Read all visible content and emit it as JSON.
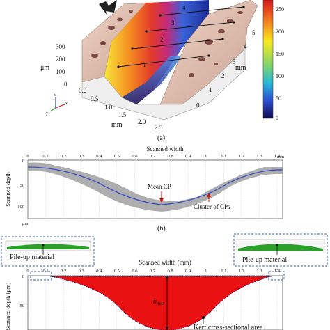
{
  "panel_a": {
    "label": "(a)",
    "z_axis_ticks": [
      "300",
      "200",
      "100",
      "0"
    ],
    "z_unit": "μm",
    "x_axis_ticks": [
      "0.0",
      "0.5",
      "1.0",
      "1.5",
      "2.0",
      "2.5"
    ],
    "x_unit": "mm",
    "y_axis_ticks": [
      "0",
      "1",
      "2",
      "3",
      "4",
      "5"
    ],
    "y_unit": "mm",
    "colorbar_ticks": [
      "250",
      "200",
      "150",
      "100",
      "50",
      "0"
    ],
    "scan_lines": [
      "1",
      "2",
      "3",
      "4"
    ],
    "triad": {
      "x": "x",
      "y": "y",
      "z": "z"
    }
  },
  "panel_b": {
    "label": "(b)",
    "title": "Scanned width",
    "x_ticks": [
      "0",
      "0.1",
      "0.2",
      "0.3",
      "0.4",
      "0.5",
      "0.6",
      "0.7",
      "0.8",
      "0.9",
      "1",
      "1.1",
      "1.2",
      "1.3",
      "1.4"
    ],
    "x_unit": "mm",
    "y_label": "Scanned depth",
    "y_ticks": [
      "0",
      "50",
      "100"
    ],
    "y_unit": "μm",
    "annotation_mean": "Mean CP",
    "annotation_cluster": "Cluster of CPs"
  },
  "panel_c": {
    "title": "Scanned width (mm)",
    "x_ticks": [
      "0",
      "0.1",
      "0.2",
      "0.3",
      "0.4",
      "0.5",
      "0.6",
      "0.7",
      "0.8",
      "0.9",
      "1",
      "1.1",
      "1.2",
      "1.3",
      "1.4"
    ],
    "y_label": "Scanned depth (μm)",
    "y_ticks": [
      "0",
      "50"
    ],
    "h_max_label": "h",
    "h_max_sub": "max",
    "area_label": "Kerf cross-sectional area",
    "pileup_left": "Pile-up material",
    "pileup_right": "Pile-up material"
  },
  "colors": {
    "kerf_fill": "#e81010",
    "pileup_green": "#2aa02a",
    "cluster_gray": "#a0a0a0",
    "mean_line": "#3a4fc8",
    "arrow_red": "#d01010",
    "dashed_box": "#3a5fb0"
  }
}
